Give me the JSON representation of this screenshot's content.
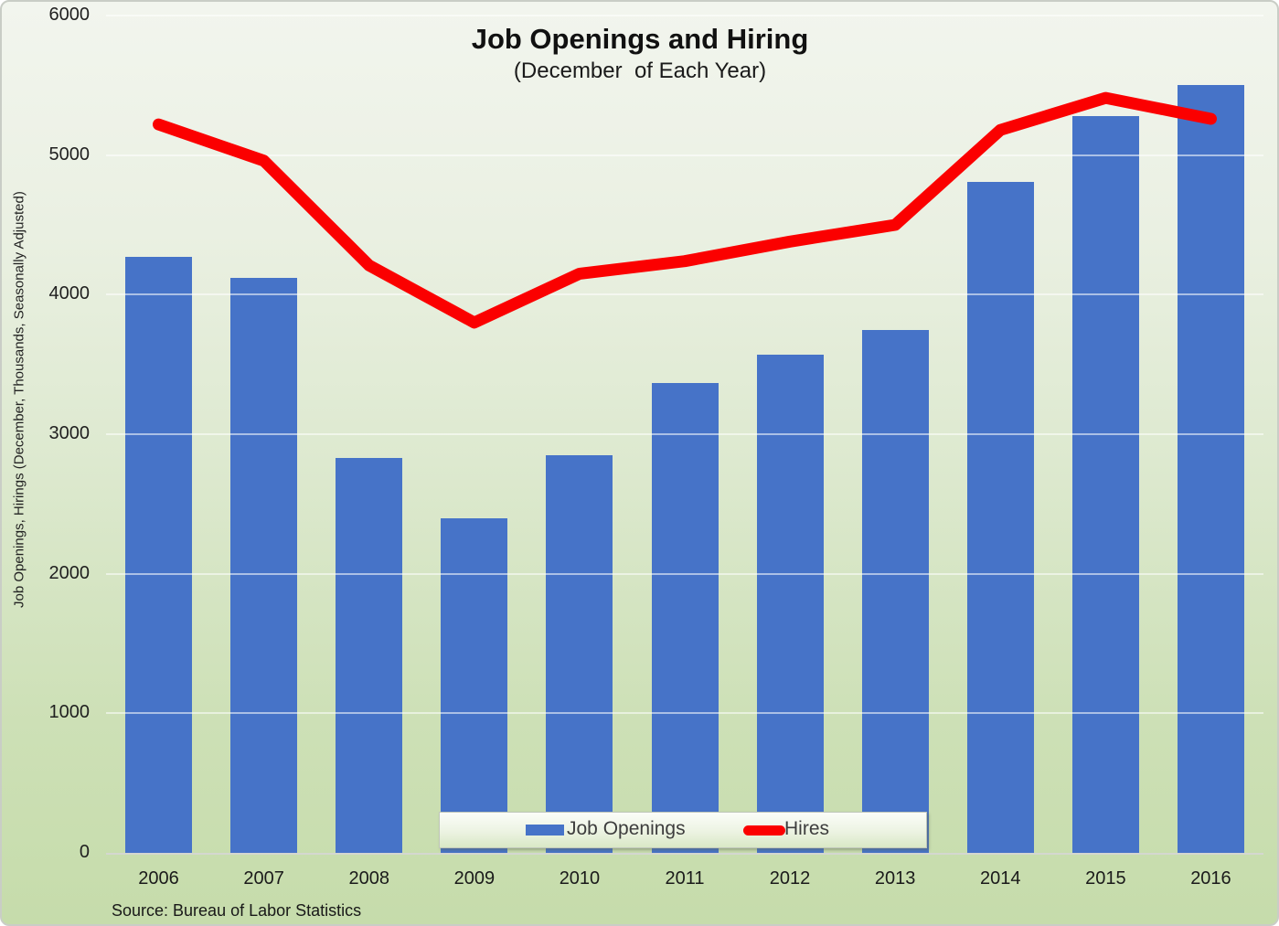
{
  "chart_data": {
    "type": "bar",
    "title": "Job Openings and Hiring",
    "subtitle": "(December  of Each Year)",
    "ylabel": "Job Openings, Hirings (December, Thousands, Seasonally Adjusted)",
    "xlabel": "",
    "source": "Source: Bureau of Labor Statistics",
    "categories": [
      "2006",
      "2007",
      "2008",
      "2009",
      "2010",
      "2011",
      "2012",
      "2013",
      "2014",
      "2015",
      "2016"
    ],
    "series": [
      {
        "name": "Job Openings",
        "type": "bar",
        "color": "#4673c8",
        "values": [
          4270,
          4120,
          2830,
          2400,
          2850,
          3370,
          3570,
          3750,
          4810,
          5280,
          5500
        ]
      },
      {
        "name": "Hires",
        "type": "line",
        "color": "#fb0000",
        "values": [
          5220,
          4960,
          4210,
          3800,
          4150,
          4240,
          4380,
          4500,
          5180,
          5410,
          5260
        ]
      }
    ],
    "ylim": [
      0,
      6000
    ],
    "yticks": [
      0,
      1000,
      2000,
      3000,
      4000,
      5000,
      6000
    ],
    "grid": true,
    "legend_position": "bottom-center-overlay",
    "background": {
      "top": "#f2f5ee",
      "bottom": "#c6dcab"
    },
    "axis_line_color": "#d4d7d0"
  }
}
